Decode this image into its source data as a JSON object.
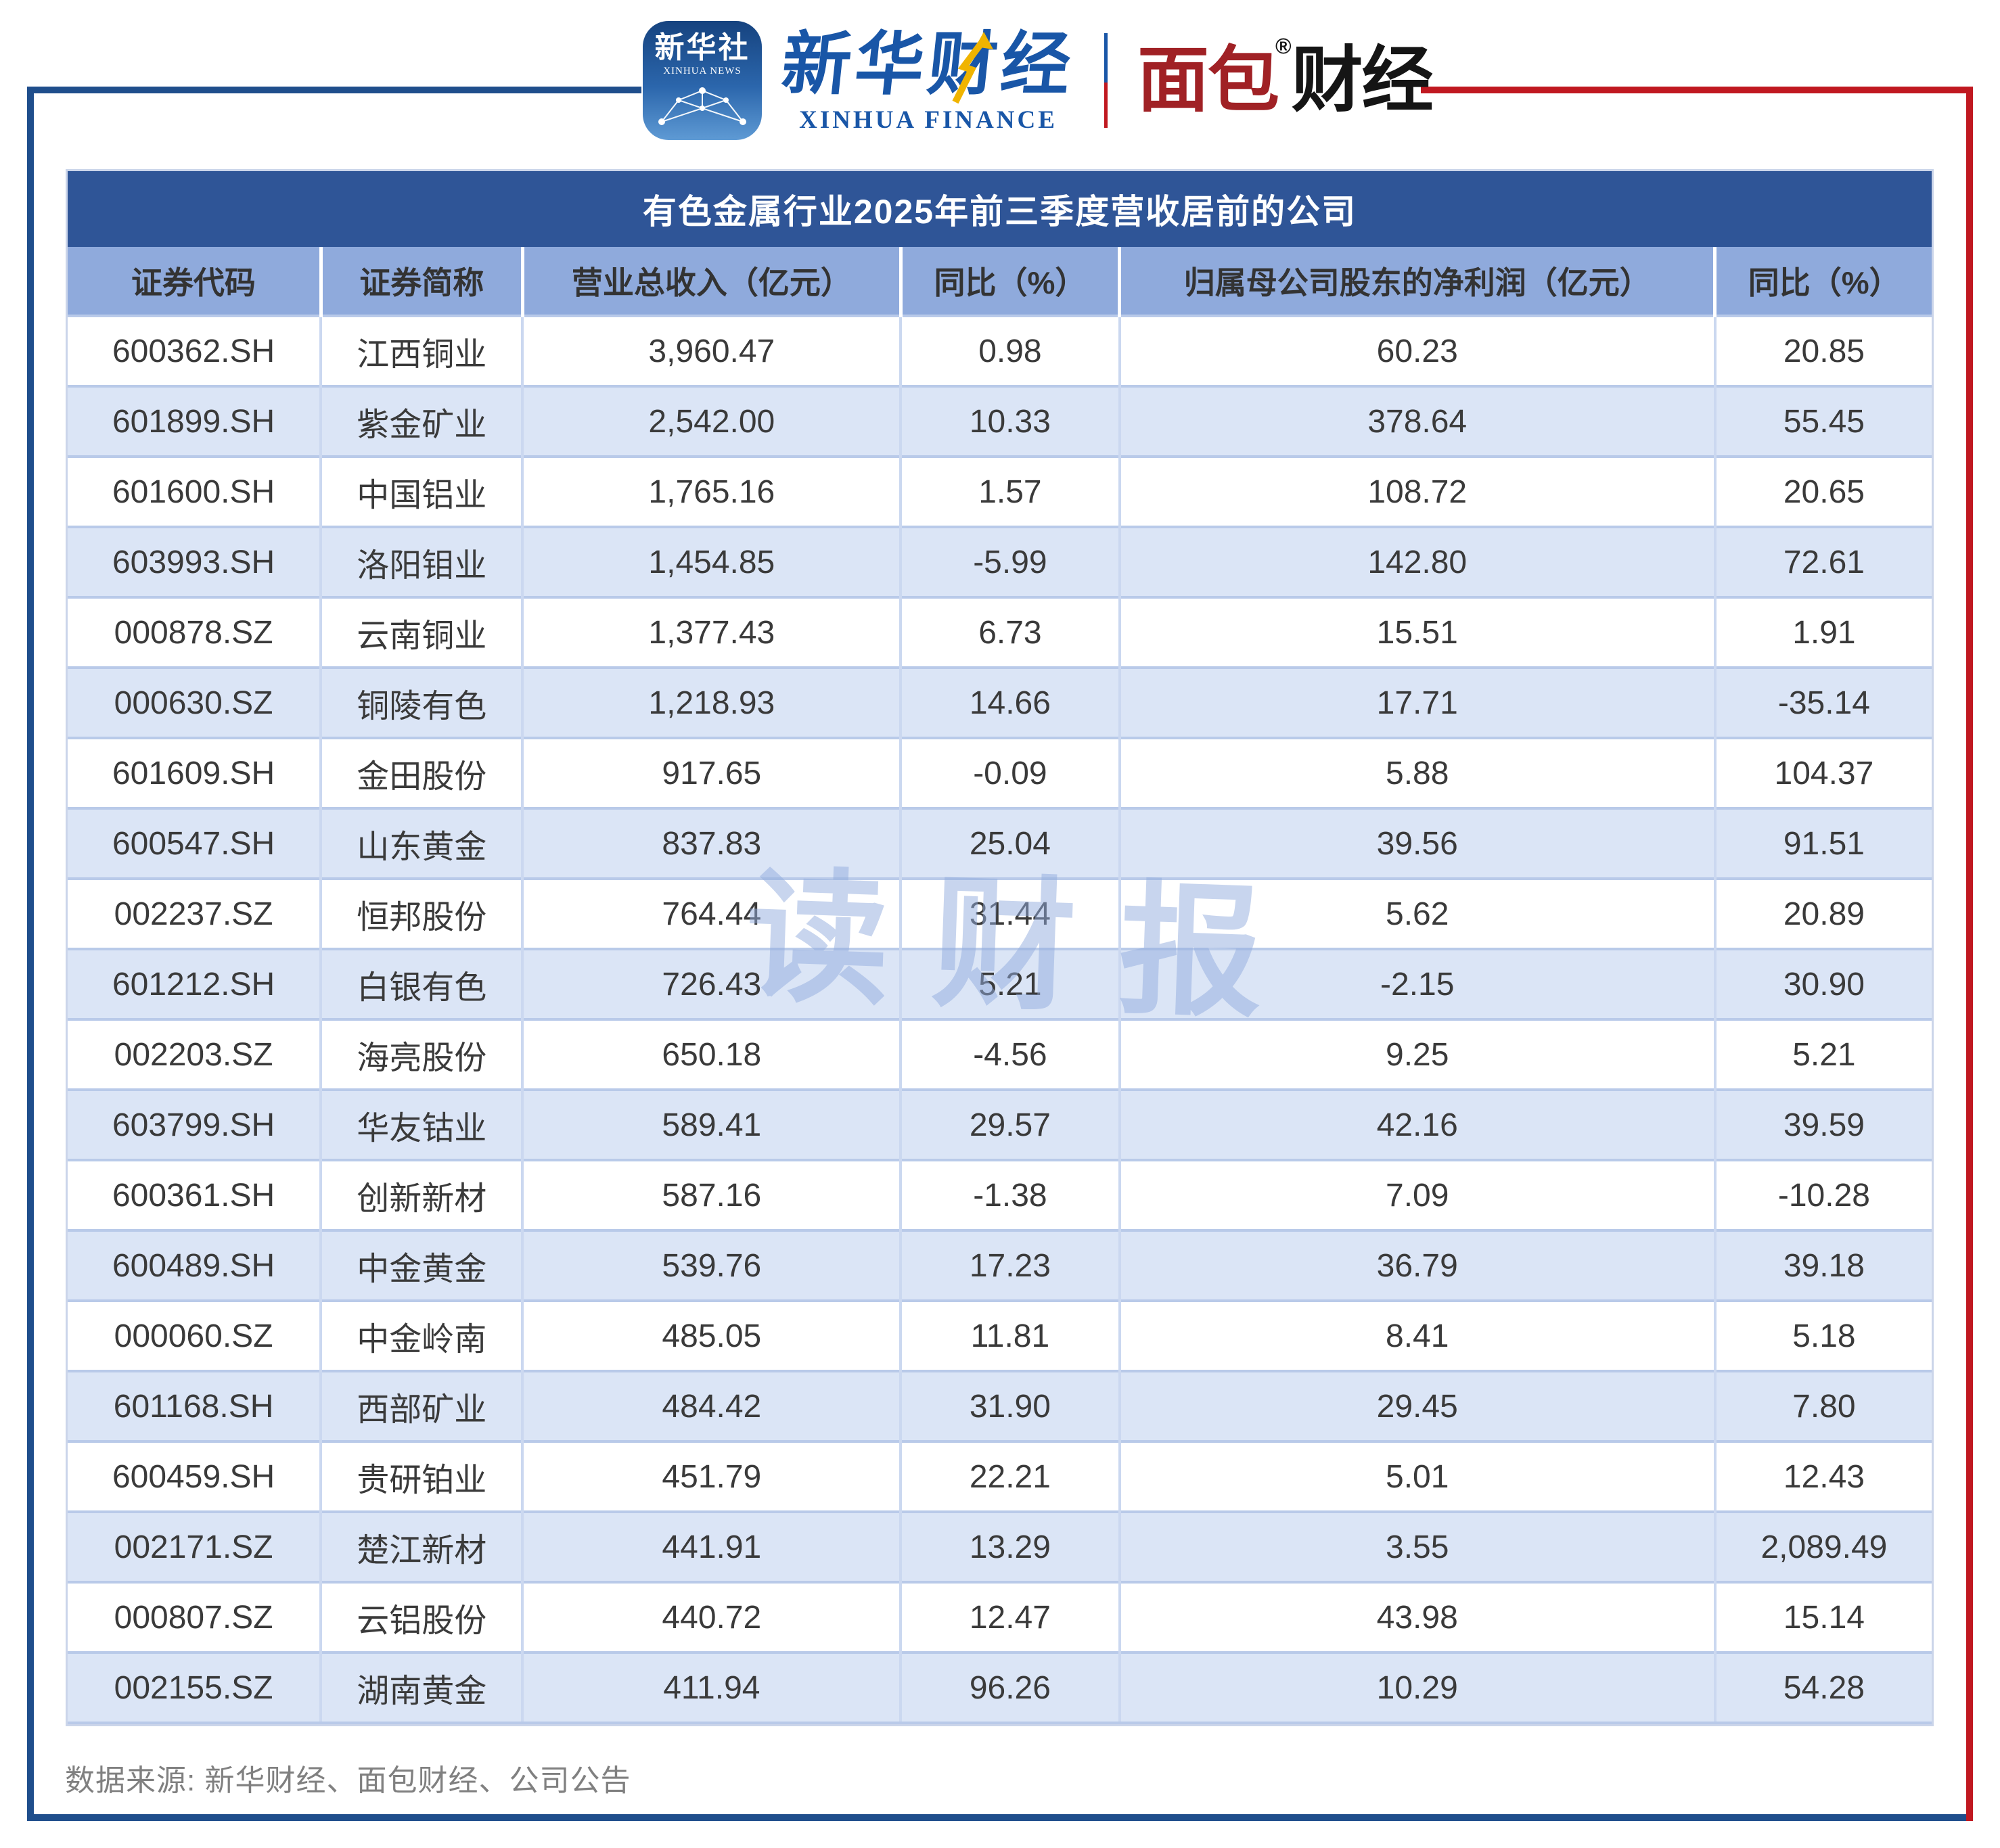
{
  "brand": {
    "icon": {
      "cn": "新华社",
      "en": "XINHUA NEWS"
    },
    "finance": {
      "cn": "新华财经",
      "en": "XINHUA FINANCE"
    },
    "mianbao": {
      "part1": "面包",
      "reg": "®",
      "part2": "财经"
    }
  },
  "watermark": {
    "chars": [
      "读",
      "财",
      "报"
    ]
  },
  "chart_data": {
    "type": "table",
    "title": "有色金属行业2025年前三季度营收居前的公司",
    "columns": [
      "证券代码",
      "证券简称",
      "营业总收入（亿元）",
      "同比（%）",
      "归属母公司股东的净利润（亿元）",
      "同比（%）"
    ],
    "rows": [
      [
        "600362.SH",
        "江西铜业",
        "3,960.47",
        "0.98",
        "60.23",
        "20.85"
      ],
      [
        "601899.SH",
        "紫金矿业",
        "2,542.00",
        "10.33",
        "378.64",
        "55.45"
      ],
      [
        "601600.SH",
        "中国铝业",
        "1,765.16",
        "1.57",
        "108.72",
        "20.65"
      ],
      [
        "603993.SH",
        "洛阳钼业",
        "1,454.85",
        "-5.99",
        "142.80",
        "72.61"
      ],
      [
        "000878.SZ",
        "云南铜业",
        "1,377.43",
        "6.73",
        "15.51",
        "1.91"
      ],
      [
        "000630.SZ",
        "铜陵有色",
        "1,218.93",
        "14.66",
        "17.71",
        "-35.14"
      ],
      [
        "601609.SH",
        "金田股份",
        "917.65",
        "-0.09",
        "5.88",
        "104.37"
      ],
      [
        "600547.SH",
        "山东黄金",
        "837.83",
        "25.04",
        "39.56",
        "91.51"
      ],
      [
        "002237.SZ",
        "恒邦股份",
        "764.44",
        "31.44",
        "5.62",
        "20.89"
      ],
      [
        "601212.SH",
        "白银有色",
        "726.43",
        "5.21",
        "-2.15",
        "30.90"
      ],
      [
        "002203.SZ",
        "海亮股份",
        "650.18",
        "-4.56",
        "9.25",
        "5.21"
      ],
      [
        "603799.SH",
        "华友钴业",
        "589.41",
        "29.57",
        "42.16",
        "39.59"
      ],
      [
        "600361.SH",
        "创新新材",
        "587.16",
        "-1.38",
        "7.09",
        "-10.28"
      ],
      [
        "600489.SH",
        "中金黄金",
        "539.76",
        "17.23",
        "36.79",
        "39.18"
      ],
      [
        "000060.SZ",
        "中金岭南",
        "485.05",
        "11.81",
        "8.41",
        "5.18"
      ],
      [
        "601168.SH",
        "西部矿业",
        "484.42",
        "31.90",
        "29.45",
        "7.80"
      ],
      [
        "600459.SH",
        "贵研铂业",
        "451.79",
        "22.21",
        "5.01",
        "12.43"
      ],
      [
        "002171.SZ",
        "楚江新材",
        "441.91",
        "13.29",
        "3.55",
        "2,089.49"
      ],
      [
        "000807.SZ",
        "云铝股份",
        "440.72",
        "12.47",
        "43.98",
        "15.14"
      ],
      [
        "002155.SZ",
        "湖南黄金",
        "411.94",
        "96.26",
        "10.29",
        "54.28"
      ]
    ]
  },
  "footer": {
    "source": "数据来源: 新华财经、面包财经、公司公告"
  },
  "colors": {
    "title_bar": "#2F5597",
    "header_row": "#8FAADC",
    "alt_row": "#DBE5F6",
    "frame_blue": "#1F4E8C",
    "frame_red": "#C01820",
    "watermark_blue": "#91ACDD",
    "xinhua_blue": "#1956A7",
    "mianbao_red": "#A02125"
  }
}
